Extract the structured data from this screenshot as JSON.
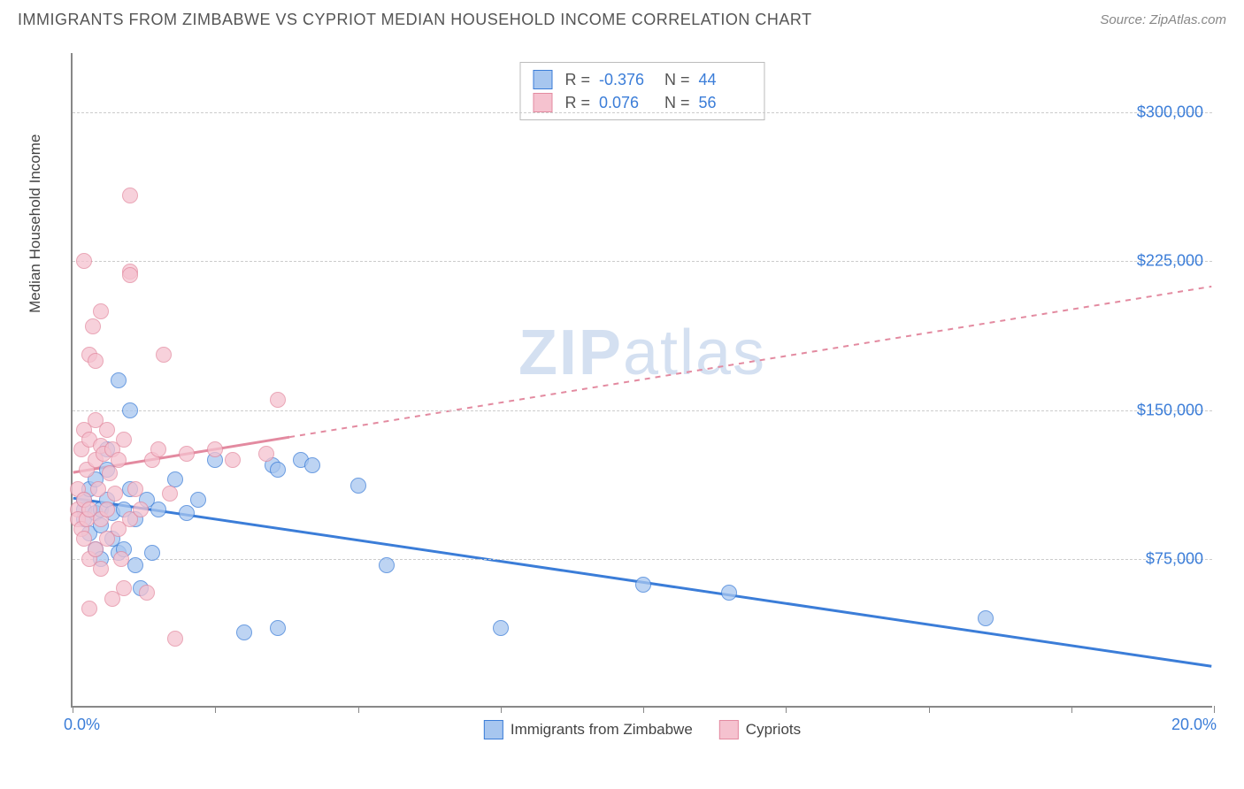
{
  "header": {
    "title": "IMMIGRANTS FROM ZIMBABWE VS CYPRIOT MEDIAN HOUSEHOLD INCOME CORRELATION CHART",
    "source_prefix": "Source: ",
    "source_name": "ZipAtlas.com"
  },
  "watermark": {
    "bold": "ZIP",
    "rest": "atlas"
  },
  "chart": {
    "type": "scatter",
    "background_color": "#ffffff",
    "grid_color": "#cccccc",
    "axis_color": "#888888",
    "text_color": "#444444",
    "tick_label_color": "#3b7dd8",
    "ylabel": "Median Household Income",
    "xlim": [
      0,
      20
    ],
    "ylim": [
      0,
      330000
    ],
    "xtick_label_min": "0.0%",
    "xtick_label_max": "20.0%",
    "xtick_positions": [
      0,
      2.5,
      5,
      7.5,
      10,
      12.5,
      15,
      17.5,
      20
    ],
    "ytick_positions": [
      75000,
      150000,
      225000,
      300000
    ],
    "ytick_labels": [
      "$75,000",
      "$150,000",
      "$225,000",
      "$300,000"
    ],
    "marker_radius": 9,
    "marker_stroke_width": 1.5,
    "marker_fill_opacity": 0.35,
    "trend_line_width": 3,
    "series": [
      {
        "key": "zimbabwe",
        "name": "Immigrants from Zimbabwe",
        "color_stroke": "#3b7dd8",
        "color_fill": "#a7c6ef",
        "r_label": "R =",
        "r_value": "-0.376",
        "n_label": "N =",
        "n_value": "44",
        "trend": {
          "x1": 0,
          "y1": 105000,
          "x2": 20,
          "y2": 20000,
          "dash_from_x": 20
        },
        "points": [
          [
            0.2,
            100000
          ],
          [
            0.2,
            95000
          ],
          [
            0.2,
            105000
          ],
          [
            0.3,
            88000
          ],
          [
            0.3,
            110000
          ],
          [
            0.4,
            98000
          ],
          [
            0.4,
            80000
          ],
          [
            0.4,
            115000
          ],
          [
            0.5,
            100000
          ],
          [
            0.5,
            92000
          ],
          [
            0.5,
            75000
          ],
          [
            0.6,
            105000
          ],
          [
            0.6,
            120000
          ],
          [
            0.7,
            98000
          ],
          [
            0.7,
            85000
          ],
          [
            0.8,
            165000
          ],
          [
            0.8,
            78000
          ],
          [
            0.9,
            80000
          ],
          [
            0.9,
            100000
          ],
          [
            1.0,
            110000
          ],
          [
            1.0,
            150000
          ],
          [
            1.1,
            95000
          ],
          [
            1.1,
            72000
          ],
          [
            1.2,
            60000
          ],
          [
            1.3,
            105000
          ],
          [
            1.4,
            78000
          ],
          [
            1.5,
            100000
          ],
          [
            1.8,
            115000
          ],
          [
            2.0,
            98000
          ],
          [
            2.2,
            105000
          ],
          [
            2.5,
            125000
          ],
          [
            3.0,
            38000
          ],
          [
            3.5,
            122000
          ],
          [
            3.6,
            120000
          ],
          [
            3.6,
            40000
          ],
          [
            4.0,
            125000
          ],
          [
            4.2,
            122000
          ],
          [
            5.0,
            112000
          ],
          [
            5.5,
            72000
          ],
          [
            7.5,
            40000
          ],
          [
            10.0,
            62000
          ],
          [
            11.5,
            58000
          ],
          [
            16.0,
            45000
          ],
          [
            0.6,
            130000
          ]
        ]
      },
      {
        "key": "cypriots",
        "name": "Cypriots",
        "color_stroke": "#e38aa0",
        "color_fill": "#f5c2cf",
        "r_label": "R =",
        "r_value": "0.076",
        "n_label": "N =",
        "n_value": "56",
        "trend": {
          "x1": 0,
          "y1": 118000,
          "x2": 20,
          "y2": 212000,
          "dash_from_x": 3.8
        },
        "points": [
          [
            0.1,
            100000
          ],
          [
            0.1,
            95000
          ],
          [
            0.1,
            110000
          ],
          [
            0.15,
            130000
          ],
          [
            0.15,
            90000
          ],
          [
            0.2,
            140000
          ],
          [
            0.2,
            85000
          ],
          [
            0.2,
            105000
          ],
          [
            0.2,
            225000
          ],
          [
            0.25,
            120000
          ],
          [
            0.25,
            95000
          ],
          [
            0.3,
            135000
          ],
          [
            0.3,
            100000
          ],
          [
            0.3,
            178000
          ],
          [
            0.3,
            75000
          ],
          [
            0.35,
            192000
          ],
          [
            0.4,
            145000
          ],
          [
            0.4,
            125000
          ],
          [
            0.4,
            80000
          ],
          [
            0.4,
            175000
          ],
          [
            0.45,
            110000
          ],
          [
            0.5,
            132000
          ],
          [
            0.5,
            95000
          ],
          [
            0.5,
            70000
          ],
          [
            0.5,
            200000
          ],
          [
            0.55,
            128000
          ],
          [
            0.6,
            140000
          ],
          [
            0.6,
            100000
          ],
          [
            0.6,
            85000
          ],
          [
            0.65,
            118000
          ],
          [
            0.7,
            130000
          ],
          [
            0.7,
            55000
          ],
          [
            0.75,
            108000
          ],
          [
            0.8,
            125000
          ],
          [
            0.8,
            90000
          ],
          [
            0.85,
            75000
          ],
          [
            0.9,
            135000
          ],
          [
            0.9,
            60000
          ],
          [
            1.0,
            220000
          ],
          [
            1.0,
            95000
          ],
          [
            1.0,
            218000
          ],
          [
            1.0,
            258000
          ],
          [
            1.1,
            110000
          ],
          [
            1.2,
            100000
          ],
          [
            1.3,
            58000
          ],
          [
            1.4,
            125000
          ],
          [
            1.5,
            130000
          ],
          [
            1.6,
            178000
          ],
          [
            1.7,
            108000
          ],
          [
            1.8,
            35000
          ],
          [
            2.0,
            128000
          ],
          [
            2.5,
            130000
          ],
          [
            2.8,
            125000
          ],
          [
            3.4,
            128000
          ],
          [
            3.6,
            155000
          ],
          [
            0.3,
            50000
          ]
        ]
      }
    ]
  },
  "bottom_legend": {
    "items": [
      {
        "label": "Immigrants from Zimbabwe",
        "stroke": "#3b7dd8",
        "fill": "#a7c6ef"
      },
      {
        "label": "Cypriots",
        "stroke": "#e38aa0",
        "fill": "#f5c2cf"
      }
    ]
  }
}
